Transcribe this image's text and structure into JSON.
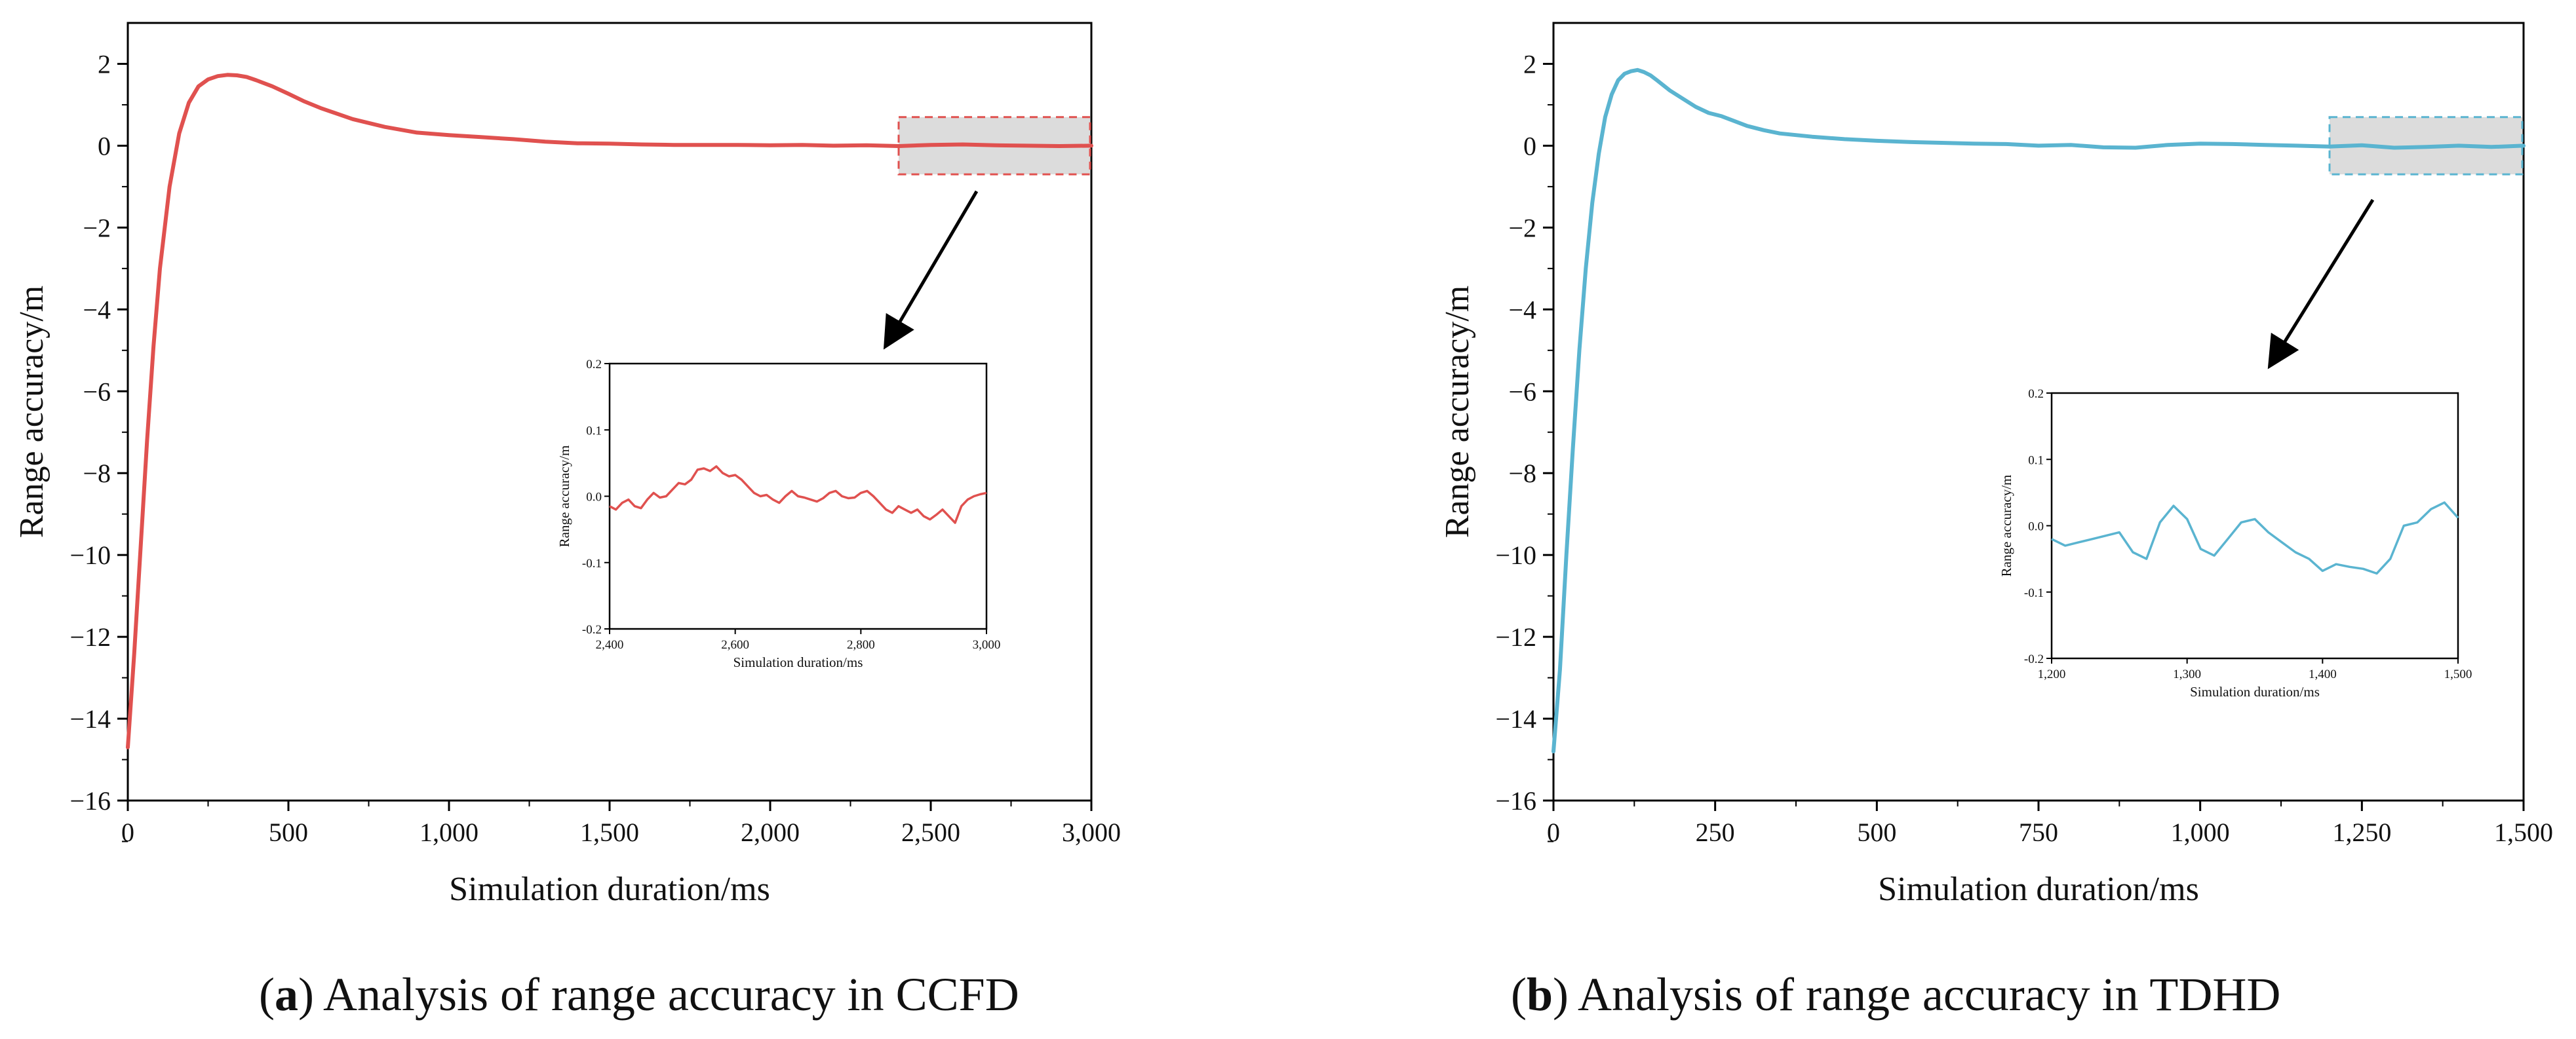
{
  "chart_data": [
    {
      "type": "line",
      "caption": {
        "open": "(",
        "letter": "a",
        "text": ") Analysis of range accuracy in CCFD"
      },
      "xlabel": "Simulation duration/ms",
      "ylabel": "Range accuracy/m",
      "xlim": [
        0,
        3000
      ],
      "ylim": [
        -16,
        3
      ],
      "xticks": [
        0,
        500,
        1000,
        1500,
        2000,
        2500,
        3000
      ],
      "xtick_labels": [
        "0",
        "500",
        "1,000",
        "1,500",
        "2,000",
        "2,500",
        "3,000"
      ],
      "yticks": [
        2,
        0,
        -2,
        -4,
        -6,
        -8,
        -10,
        -12,
        -14,
        -16
      ],
      "ytick_labels": [
        "2",
        "0",
        "−2",
        "−4",
        "−6",
        "−8",
        "−10",
        "−12",
        "−14",
        "−16"
      ],
      "color": "#e0514f",
      "highlight_box": {
        "x": [
          2400,
          3000
        ],
        "y": [
          -0.7,
          0.7
        ]
      },
      "series": [
        {
          "name": "CCFD",
          "x": [
            0,
            20,
            40,
            60,
            80,
            100,
            130,
            160,
            190,
            220,
            250,
            280,
            310,
            340,
            370,
            400,
            450,
            500,
            550,
            600,
            700,
            800,
            900,
            1000,
            1100,
            1200,
            1300,
            1400,
            1500,
            1600,
            1700,
            1800,
            1900,
            2000,
            2100,
            2200,
            2300,
            2400,
            2500,
            2600,
            2700,
            2800,
            2900,
            3000
          ],
          "y": [
            -14.7,
            -12.4,
            -9.8,
            -7.2,
            -4.9,
            -3.0,
            -1.0,
            0.3,
            1.05,
            1.45,
            1.62,
            1.7,
            1.73,
            1.72,
            1.68,
            1.6,
            1.45,
            1.27,
            1.08,
            0.92,
            0.65,
            0.46,
            0.32,
            0.26,
            0.21,
            0.16,
            0.1,
            0.06,
            0.05,
            0.03,
            0.02,
            0.02,
            0.02,
            0.01,
            0.02,
            0.0,
            0.01,
            -0.01,
            0.02,
            0.03,
            0.01,
            0.0,
            -0.01,
            0.0
          ]
        }
      ],
      "inset": {
        "xlabel": "Simulation duration/ms",
        "ylabel": "Range accuracy/m",
        "xlim": [
          2400,
          3000
        ],
        "ylim": [
          -0.2,
          0.2
        ],
        "xticks": [
          2400,
          2600,
          2800,
          3000
        ],
        "xtick_labels": [
          "2,400",
          "2,600",
          "2,800",
          "3,000"
        ],
        "yticks": [
          0.2,
          0.1,
          0.0,
          -0.1,
          -0.2
        ],
        "ytick_labels": [
          "0.2",
          "0.1",
          "0.0",
          "-0.1",
          "-0.2"
        ],
        "x": [
          2400,
          2410,
          2420,
          2430,
          2440,
          2450,
          2460,
          2470,
          2480,
          2490,
          2500,
          2510,
          2520,
          2530,
          2540,
          2550,
          2560,
          2570,
          2580,
          2590,
          2600,
          2610,
          2620,
          2630,
          2640,
          2650,
          2660,
          2670,
          2680,
          2690,
          2700,
          2710,
          2720,
          2730,
          2740,
          2750,
          2760,
          2770,
          2780,
          2790,
          2800,
          2810,
          2820,
          2830,
          2840,
          2850,
          2860,
          2870,
          2880,
          2890,
          2900,
          2910,
          2920,
          2930,
          2940,
          2950,
          2960,
          2970,
          2980,
          2990,
          3000
        ],
        "y": [
          -0.015,
          -0.02,
          -0.01,
          -0.005,
          -0.015,
          -0.018,
          -0.005,
          0.005,
          -0.002,
          0.0,
          0.01,
          0.02,
          0.018,
          0.025,
          0.04,
          0.042,
          0.038,
          0.045,
          0.035,
          0.03,
          0.032,
          0.025,
          0.015,
          0.005,
          0.0,
          0.002,
          -0.005,
          -0.01,
          0.0,
          0.008,
          0.0,
          -0.002,
          -0.005,
          -0.008,
          -0.003,
          0.005,
          0.008,
          0.0,
          -0.003,
          -0.002,
          0.005,
          0.008,
          0.0,
          -0.01,
          -0.02,
          -0.025,
          -0.015,
          -0.02,
          -0.025,
          -0.02,
          -0.03,
          -0.035,
          -0.028,
          -0.02,
          -0.03,
          -0.04,
          -0.015,
          -0.005,
          0.0,
          0.003,
          0.005
        ]
      }
    },
    {
      "type": "line",
      "caption": {
        "open": "(",
        "letter": "b",
        "text": ") Analysis of range accuracy in TDHD"
      },
      "xlabel": "Simulation duration/ms",
      "ylabel": "Range accuracy/m",
      "xlim": [
        0,
        1500
      ],
      "ylim": [
        -16,
        3
      ],
      "xticks": [
        0,
        250,
        500,
        750,
        1000,
        1250,
        1500
      ],
      "xtick_labels": [
        "0",
        "250",
        "500",
        "750",
        "1,000",
        "1,250",
        "1,500"
      ],
      "yticks": [
        2,
        0,
        -2,
        -4,
        -6,
        -8,
        -10,
        -12,
        -14,
        -16
      ],
      "ytick_labels": [
        "2",
        "0",
        "−2",
        "−4",
        "−6",
        "−8",
        "−10",
        "−12",
        "−14",
        "−16"
      ],
      "color": "#5ab4d0",
      "highlight_box": {
        "x": [
          1200,
          1500
        ],
        "y": [
          -0.7,
          0.7
        ]
      },
      "series": [
        {
          "name": "TDHD",
          "x": [
            0,
            10,
            20,
            30,
            40,
            50,
            60,
            70,
            80,
            90,
            100,
            110,
            120,
            130,
            140,
            150,
            160,
            180,
            200,
            220,
            240,
            260,
            280,
            300,
            325,
            350,
            375,
            400,
            450,
            500,
            550,
            600,
            650,
            700,
            750,
            800,
            850,
            900,
            950,
            1000,
            1050,
            1100,
            1150,
            1200,
            1250,
            1300,
            1350,
            1400,
            1450,
            1500
          ],
          "y": [
            -14.8,
            -12.8,
            -10.0,
            -7.4,
            -5.0,
            -3.0,
            -1.4,
            -0.2,
            0.7,
            1.25,
            1.6,
            1.76,
            1.82,
            1.85,
            1.8,
            1.72,
            1.6,
            1.35,
            1.15,
            0.95,
            0.8,
            0.72,
            0.6,
            0.48,
            0.38,
            0.3,
            0.26,
            0.22,
            0.16,
            0.12,
            0.09,
            0.07,
            0.05,
            0.04,
            0.0,
            0.02,
            -0.04,
            -0.05,
            0.02,
            0.05,
            0.04,
            0.02,
            0.0,
            -0.02,
            0.01,
            -0.05,
            -0.03,
            0.0,
            -0.03,
            0.0
          ]
        }
      ],
      "inset": {
        "xlabel": "Simulation duration/ms",
        "ylabel": "Range accuracy/m",
        "xlim": [
          1200,
          1500
        ],
        "ylim": [
          -0.2,
          0.2
        ],
        "xticks": [
          1200,
          1300,
          1400,
          1500
        ],
        "xtick_labels": [
          "1,200",
          "1,300",
          "1,400",
          "1,500"
        ],
        "yticks": [
          0.2,
          0.1,
          0.0,
          -0.1,
          -0.2
        ],
        "ytick_labels": [
          "0.2",
          "0.1",
          "0.0",
          "-0.1",
          "-0.2"
        ],
        "x": [
          1200,
          1210,
          1220,
          1230,
          1240,
          1250,
          1260,
          1270,
          1280,
          1290,
          1300,
          1310,
          1320,
          1330,
          1340,
          1350,
          1360,
          1370,
          1380,
          1390,
          1400,
          1410,
          1420,
          1430,
          1440,
          1450,
          1460,
          1470,
          1480,
          1490,
          1500
        ],
        "y": [
          -0.02,
          -0.03,
          -0.025,
          -0.02,
          -0.015,
          -0.01,
          -0.04,
          -0.05,
          0.005,
          0.03,
          0.01,
          -0.035,
          -0.045,
          -0.02,
          0.005,
          0.01,
          -0.01,
          -0.025,
          -0.04,
          -0.05,
          -0.068,
          -0.058,
          -0.062,
          -0.065,
          -0.072,
          -0.05,
          0.0,
          0.005,
          0.025,
          0.035,
          0.012
        ]
      }
    }
  ]
}
